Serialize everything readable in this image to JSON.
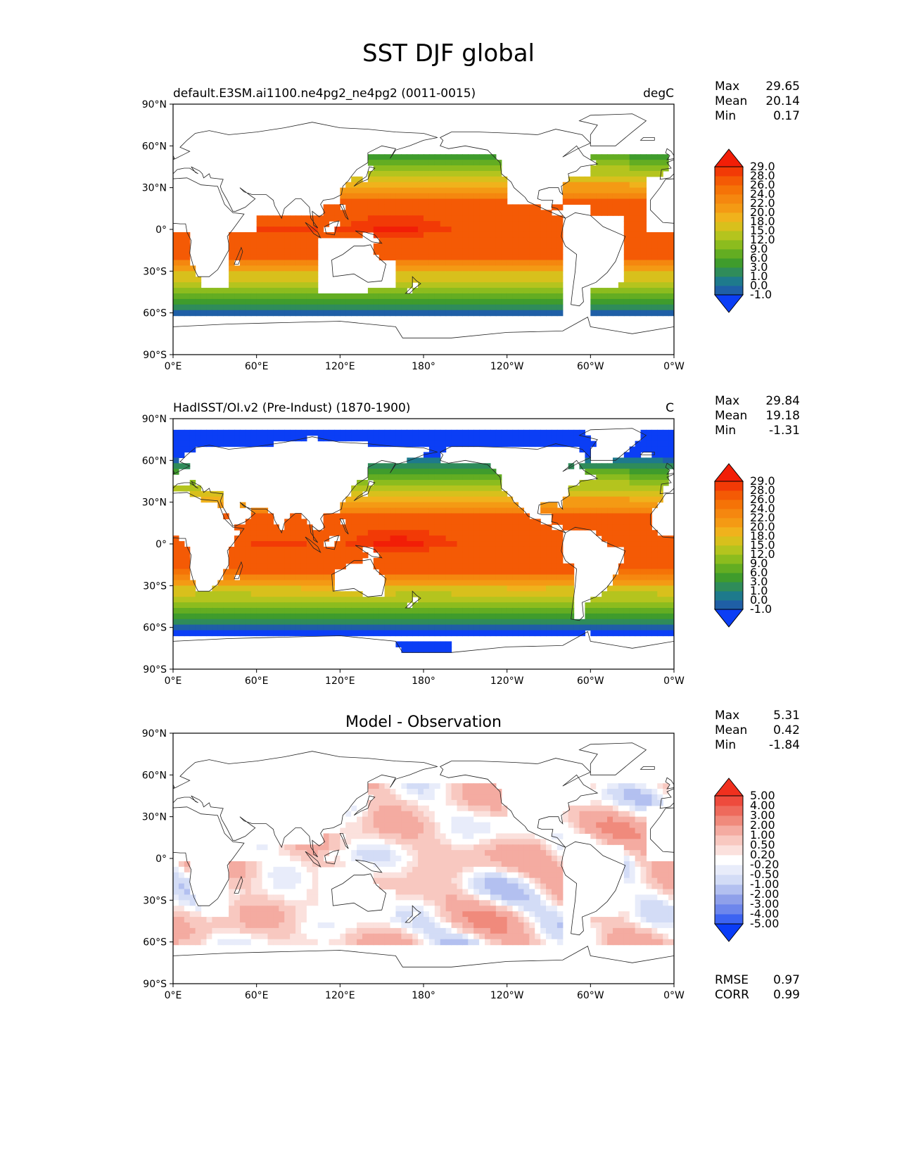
{
  "figure": {
    "title": "SST DJF global"
  },
  "axis_ticks": {
    "lat": [
      "90°N",
      "60°N",
      "30°N",
      "0°",
      "30°S",
      "60°S",
      "90°S"
    ],
    "lon": [
      "0°E",
      "60°E",
      "120°E",
      "180°",
      "120°W",
      "60°W",
      "0°W"
    ]
  },
  "panels": [
    {
      "left_title": "default.E3SM.ai1100.ne4pg2_ne4pg2 (0011-0015)",
      "center_title": "",
      "right_title": "degC",
      "stats": [
        {
          "label": "Max",
          "value": "29.65"
        },
        {
          "label": "Mean",
          "value": "20.14"
        },
        {
          "label": "Min",
          "value": "0.17"
        }
      ],
      "colorbar": {
        "labels": [
          "29.0",
          "28.0",
          "26.0",
          "24.0",
          "22.0",
          "20.0",
          "18.0",
          "15.0",
          "12.0",
          "9.0",
          "6.0",
          "3.0",
          "1.0",
          "0.0",
          "-1.0"
        ]
      }
    },
    {
      "left_title": "HadISST/OI.v2 (Pre-Indust) (1870-1900)",
      "center_title": "",
      "right_title": "C",
      "stats": [
        {
          "label": "Max",
          "value": "29.84"
        },
        {
          "label": "Mean",
          "value": "19.18"
        },
        {
          "label": "Min",
          "value": "-1.31"
        }
      ],
      "colorbar": {
        "labels": [
          "29.0",
          "28.0",
          "26.0",
          "24.0",
          "22.0",
          "20.0",
          "18.0",
          "15.0",
          "12.0",
          "9.0",
          "6.0",
          "3.0",
          "1.0",
          "0.0",
          "-1.0"
        ]
      }
    },
    {
      "left_title": "",
      "center_title": "Model - Observation",
      "right_title": "",
      "stats": [
        {
          "label": "Max",
          "value": "5.31"
        },
        {
          "label": "Mean",
          "value": "0.42"
        },
        {
          "label": "Min",
          "value": "-1.84"
        }
      ],
      "colorbar": {
        "labels": [
          "5.00",
          "4.00",
          "3.00",
          "2.00",
          "1.00",
          "0.50",
          "0.20",
          "-0.20",
          "-0.50",
          "-1.00",
          "-2.00",
          "-3.00",
          "-4.00",
          "-5.00"
        ]
      },
      "footer_stats": [
        {
          "label": "RMSE",
          "value": "0.97"
        },
        {
          "label": "CORR",
          "value": "0.99"
        }
      ]
    }
  ],
  "colors": {
    "sst_levels": [
      "#0b3ef5",
      "#1f5fa6",
      "#1e7a8c",
      "#2f8c5a",
      "#3f9c2c",
      "#63ad22",
      "#8cbc1e",
      "#b4c41e",
      "#d8c01c",
      "#f0b21c",
      "#f49a14",
      "#f5870f",
      "#f57307",
      "#f45a05",
      "#f23a06",
      "#f21e07"
    ],
    "diff_levels": [
      "#0a3cf7",
      "#3c63f2",
      "#6d86ec",
      "#8fa0ea",
      "#b3c0f0",
      "#d3dcf6",
      "#e8ecfa",
      "#ffffff",
      "#fbe1dd",
      "#f8c8c0",
      "#f4aba1",
      "#f08a7c",
      "#ee6a5c",
      "#ee4b3d",
      "#f0301e"
    ]
  },
  "chart_data": [
    {
      "type": "heatmap",
      "title": "default.E3SM.ai1100.ne4pg2_ne4pg2 (0011-0015)",
      "units": "degC",
      "xlim": [
        0,
        360
      ],
      "ylim": [
        -90,
        90
      ],
      "levels": [
        -1.0,
        0.0,
        1.0,
        3.0,
        6.0,
        9.0,
        12.0,
        15.0,
        18.0,
        20.0,
        22.0,
        24.0,
        26.0,
        28.0,
        29.0
      ],
      "stats": {
        "max": 29.65,
        "mean": 20.14,
        "min": 0.17
      }
    },
    {
      "type": "heatmap",
      "title": "HadISST/OI.v2 (Pre-Indust) (1870-1900)",
      "units": "C",
      "xlim": [
        0,
        360
      ],
      "ylim": [
        -90,
        90
      ],
      "levels": [
        -1.0,
        0.0,
        1.0,
        3.0,
        6.0,
        9.0,
        12.0,
        15.0,
        18.0,
        20.0,
        22.0,
        24.0,
        26.0,
        28.0,
        29.0
      ],
      "stats": {
        "max": 29.84,
        "mean": 19.18,
        "min": -1.31
      }
    },
    {
      "type": "heatmap",
      "title": "Model - Observation",
      "xlim": [
        0,
        360
      ],
      "ylim": [
        -90,
        90
      ],
      "levels": [
        -5.0,
        -4.0,
        -3.0,
        -2.0,
        -1.0,
        -0.5,
        -0.2,
        0.2,
        0.5,
        1.0,
        2.0,
        3.0,
        4.0,
        5.0
      ],
      "stats": {
        "max": 5.31,
        "mean": 0.42,
        "min": -1.84,
        "rmse": 0.97,
        "corr": 0.99
      }
    }
  ]
}
